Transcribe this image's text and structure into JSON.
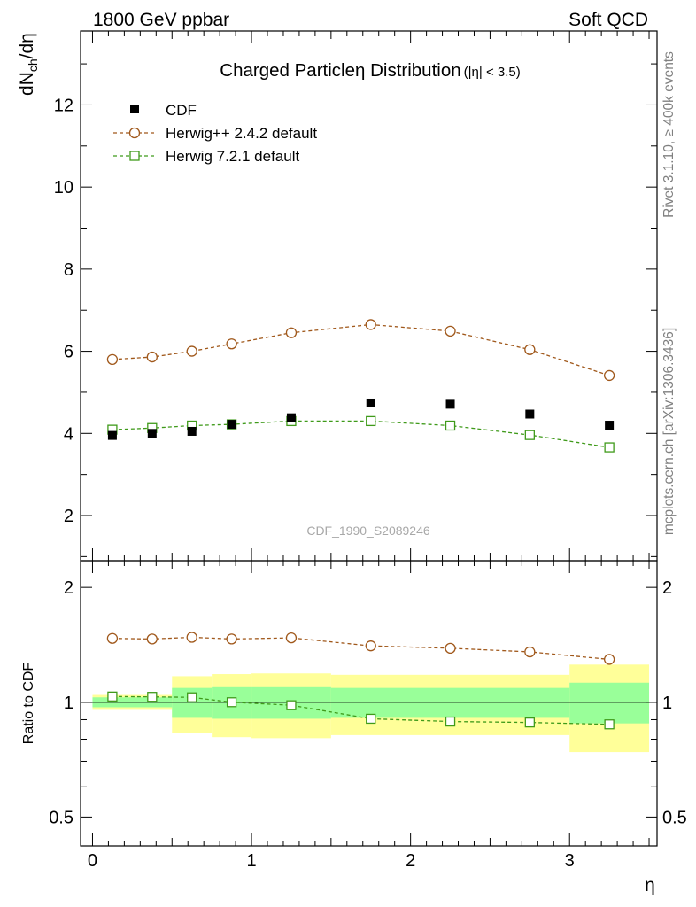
{
  "header": {
    "left": "1800 GeV ppbar",
    "right": "Soft QCD"
  },
  "side_text": {
    "rivet": "Rivet 3.1.10, ≥ 400k events",
    "mcplots": "mcplots.cern.ch [arXiv:1306.3436]"
  },
  "watermark": "CDF_1990_S2089246",
  "colors": {
    "cdf": "#000000",
    "herwigpp": "#a0581b",
    "herwig7": "#3f9a1a",
    "band_inner": "#99ff99",
    "band_outer": "#ffff99"
  },
  "chart_data": [
    {
      "type": "scatter",
      "title": "Charged Particle",
      "title_symbol": "η",
      "title_mid": " Distribution",
      "title_cut": "(|η| < 3.5)",
      "ylabel": "dN",
      "ylabel_sub": "ch",
      "ylabel_tail": "/dη",
      "xlim": [
        -0.075,
        3.55
      ],
      "ylim": [
        0.9,
        13.8
      ],
      "yticks": [
        2,
        4,
        6,
        8,
        10,
        12
      ],
      "ytick_labels": [
        "2",
        "4",
        "6",
        "8",
        "10",
        "12"
      ],
      "legend": [
        "CDF",
        "Herwig++ 2.4.2 default",
        "Herwig 7.2.1 default"
      ],
      "series": [
        {
          "name": "CDF",
          "x": [
            0.125,
            0.375,
            0.625,
            0.875,
            1.25,
            1.75,
            2.25,
            2.75,
            3.25
          ],
          "values": [
            3.95,
            4.0,
            4.05,
            4.22,
            4.38,
            4.74,
            4.71,
            4.47,
            4.2
          ]
        },
        {
          "name": "Herwig++ 2.4.2 default",
          "x": [
            0.125,
            0.375,
            0.625,
            0.875,
            1.25,
            1.75,
            2.25,
            2.75,
            3.25
          ],
          "values": [
            5.8,
            5.86,
            6.0,
            6.18,
            6.45,
            6.65,
            6.49,
            6.04,
            5.41
          ]
        },
        {
          "name": "Herwig 7.2.1 default",
          "x": [
            0.125,
            0.375,
            0.625,
            0.875,
            1.25,
            1.75,
            2.25,
            2.75,
            3.25
          ],
          "values": [
            4.09,
            4.13,
            4.19,
            4.22,
            4.3,
            4.3,
            4.19,
            3.96,
            3.66
          ]
        }
      ]
    },
    {
      "type": "scatter",
      "ylabel": "Ratio to CDF",
      "xlabel": "η",
      "xlim": [
        -0.075,
        3.55
      ],
      "ylim": [
        0.42,
        2.35
      ],
      "xticks": [
        0,
        1,
        2,
        3
      ],
      "xtick_labels": [
        "0",
        "1",
        "2",
        "3"
      ],
      "yticks": [
        0.5,
        1,
        2
      ],
      "ytick_labels": [
        "0.5",
        "1",
        "2"
      ],
      "bands": [
        {
          "x0": 0.0,
          "x1": 0.5,
          "inner": [
            0.97,
            1.03
          ],
          "outer": [
            0.955,
            1.045
          ]
        },
        {
          "x0": 0.5,
          "x1": 0.75,
          "inner": [
            0.91,
            1.09
          ],
          "outer": [
            0.83,
            1.17
          ]
        },
        {
          "x0": 0.75,
          "x1": 1.0,
          "inner": [
            0.905,
            1.095
          ],
          "outer": [
            0.81,
            1.185
          ]
        },
        {
          "x0": 1.0,
          "x1": 1.5,
          "inner": [
            0.905,
            1.095
          ],
          "outer": [
            0.805,
            1.19
          ]
        },
        {
          "x0": 1.5,
          "x1": 3.0,
          "inner": [
            0.91,
            1.09
          ],
          "outer": [
            0.82,
            1.18
          ]
        },
        {
          "x0": 3.0,
          "x1": 3.5,
          "inner": [
            0.88,
            1.125
          ],
          "outer": [
            0.74,
            1.255
          ]
        }
      ],
      "series": [
        {
          "name": "Herwig++ 2.4.2 default",
          "x": [
            0.125,
            0.375,
            0.625,
            0.875,
            1.25,
            1.75,
            2.25,
            2.75,
            3.25
          ],
          "values": [
            1.47,
            1.465,
            1.48,
            1.465,
            1.475,
            1.405,
            1.385,
            1.355,
            1.295
          ]
        },
        {
          "name": "Herwig 7.2.1 default",
          "x": [
            0.125,
            0.375,
            0.625,
            0.875,
            1.25,
            1.75,
            2.25,
            2.75,
            3.25
          ],
          "values": [
            1.035,
            1.033,
            1.03,
            1.0,
            0.982,
            0.905,
            0.89,
            0.885,
            0.875
          ]
        }
      ]
    }
  ]
}
